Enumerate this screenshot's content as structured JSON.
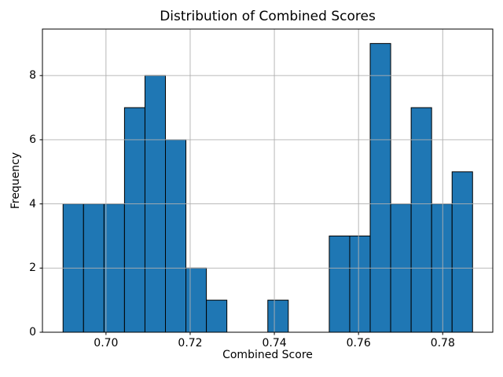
{
  "figure": {
    "title": "Distribution of Combined Scores",
    "xlabel": "Combined Score",
    "ylabel": "Frequency"
  },
  "chart_data": {
    "type": "bar",
    "subtype": "histogram",
    "title": "Distribution of Combined Scores",
    "xlabel": "Combined Score",
    "ylabel": "Frequency",
    "bin_start": 0.6898,
    "bin_width": 0.004865,
    "counts": [
      4,
      4,
      4,
      7,
      8,
      6,
      2,
      1,
      0,
      0,
      1,
      0,
      0,
      3,
      3,
      9,
      4,
      7,
      4,
      5
    ],
    "total_samples": 72,
    "xlim": [
      0.6849,
      0.7919
    ],
    "ylim": [
      0,
      9.45
    ],
    "xticks": {
      "values": [
        0.7,
        0.72,
        0.74,
        0.76,
        0.78
      ],
      "labels": [
        "0.70",
        "0.72",
        "0.74",
        "0.76",
        "0.78"
      ]
    },
    "yticks": {
      "values": [
        0,
        2,
        4,
        6,
        8
      ],
      "labels": [
        "0",
        "2",
        "4",
        "6",
        "8"
      ]
    },
    "grid": true,
    "legend_position": "none",
    "colors": {
      "bar": "#1f77b4",
      "edge": "#000000",
      "grid": "#b0b0b0",
      "spine": "#000000",
      "text": "#000000",
      "background": "#ffffff"
    }
  }
}
